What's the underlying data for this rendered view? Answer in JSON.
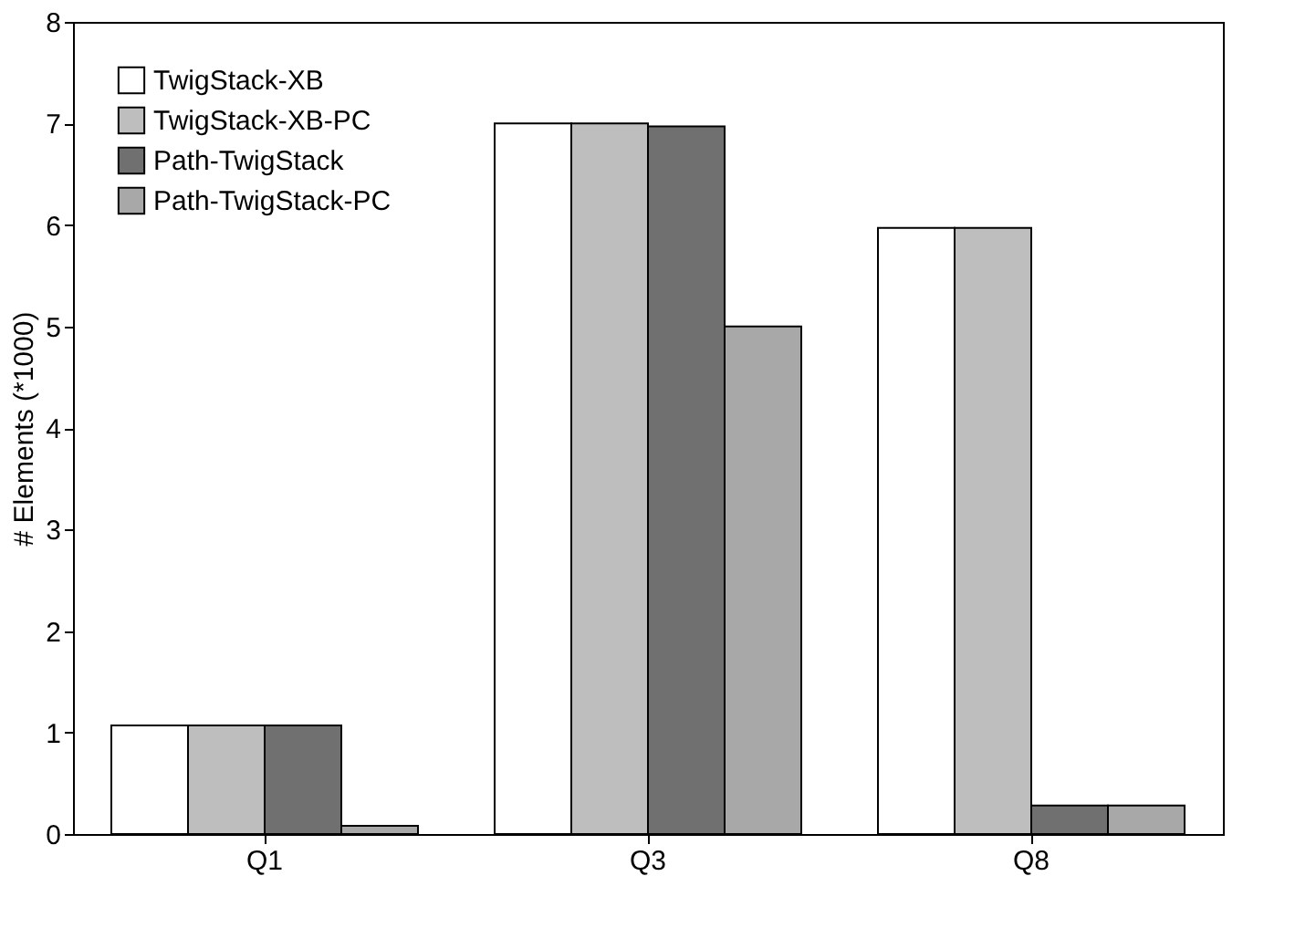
{
  "chart_data": {
    "type": "bar",
    "ylabel": "# Elements (*1000)",
    "categories": [
      "Q1",
      "Q3",
      "Q8"
    ],
    "series": [
      {
        "name": "TwigStack-XB",
        "color": "#ffffff",
        "values": [
          1.07,
          7.0,
          5.97
        ]
      },
      {
        "name": "TwigStack-XB-PC",
        "color": "#bebebe",
        "values": [
          1.07,
          7.0,
          5.97
        ]
      },
      {
        "name": "Path-TwigStack",
        "color": "#707070",
        "values": [
          1.07,
          6.97,
          0.28
        ]
      },
      {
        "name": "Path-TwigStack-PC",
        "color": "#a8a8a8",
        "values": [
          0.08,
          5.0,
          0.28
        ]
      }
    ],
    "ylim": [
      0,
      8
    ],
    "yticks": [
      0,
      1,
      2,
      3,
      4,
      5,
      6,
      7,
      8
    ],
    "grid": false,
    "legend": "top left"
  }
}
